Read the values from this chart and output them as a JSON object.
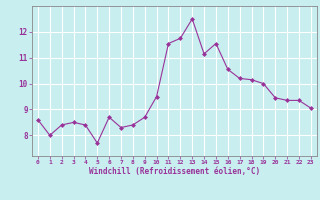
{
  "x": [
    0,
    1,
    2,
    3,
    4,
    5,
    6,
    7,
    8,
    9,
    10,
    11,
    12,
    13,
    14,
    15,
    16,
    17,
    18,
    19,
    20,
    21,
    22,
    23
  ],
  "y": [
    8.6,
    8.0,
    8.4,
    8.5,
    8.4,
    7.7,
    8.7,
    8.3,
    8.4,
    8.7,
    9.5,
    11.55,
    11.75,
    12.5,
    11.15,
    11.55,
    10.55,
    10.2,
    10.15,
    10.0,
    9.45,
    9.35,
    9.35,
    9.05
  ],
  "line_color": "#993399",
  "marker": "D",
  "marker_size": 2.0,
  "bg_color": "#c8eef0",
  "grid_color": "#ffffff",
  "xlabel": "Windchill (Refroidissement éolien,°C)",
  "xlabel_color": "#993399",
  "tick_color": "#993399",
  "ylabel_ticks": [
    8,
    9,
    10,
    11,
    12
  ],
  "ylim": [
    7.2,
    13.0
  ],
  "xlim": [
    -0.5,
    23.5
  ],
  "figsize": [
    3.2,
    2.0
  ],
  "dpi": 100
}
